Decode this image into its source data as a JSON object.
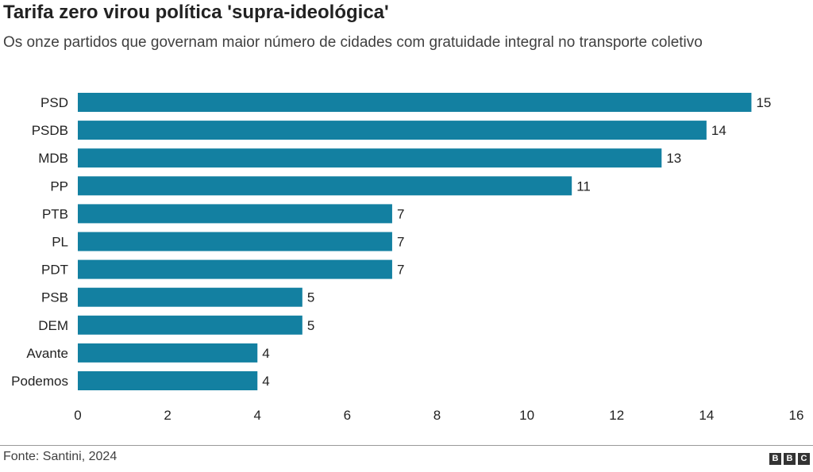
{
  "header": {
    "title": "Tarifa zero virou política 'supra-ideológica'",
    "subtitle": "Os onze partidos que governam maior número de cidades com gratuidade integral no transporte coletivo"
  },
  "footer": {
    "source": "Fonte: Santini, 2024",
    "logo_letters": [
      "B",
      "B",
      "C"
    ]
  },
  "colors": {
    "bar": "#1380A1",
    "text": "#222222"
  },
  "chart_data": {
    "type": "bar",
    "orientation": "horizontal",
    "title": "Tarifa zero virou política 'supra-ideológica'",
    "subtitle": "Os onze partidos que governam maior número de cidades com gratuidade integral no transporte coletivo",
    "categories": [
      "PSD",
      "PSDB",
      "MDB",
      "PP",
      "PTB",
      "PL",
      "PDT",
      "PSB",
      "DEM",
      "Avante",
      "Podemos"
    ],
    "values": [
      15,
      14,
      13,
      11,
      7,
      7,
      7,
      5,
      5,
      4,
      4
    ],
    "xlim": [
      0,
      16
    ],
    "xticks": [
      0,
      2,
      4,
      6,
      8,
      10,
      12,
      14,
      16
    ],
    "grid": false,
    "data_labels": true
  }
}
